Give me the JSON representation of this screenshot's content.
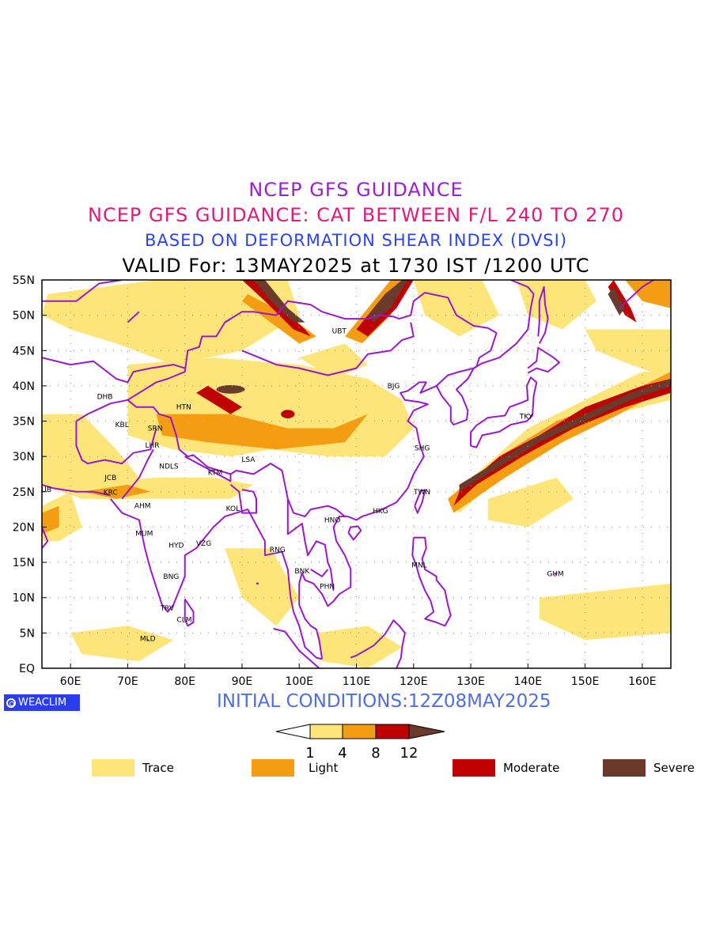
{
  "titles": {
    "line1": "NCEP GFS GUIDANCE",
    "line2": "NCEP GFS GUIDANCE: CAT BETWEEN F/L 240 TO 270",
    "line3": "BASED ON DEFORMATION SHEAR INDEX (DVSI)",
    "line4": "VALID For: 13MAY2025 at 1730 IST /1200 UTC"
  },
  "colors": {
    "line1": "#9b1fd0",
    "line2": "#e0197a",
    "line3": "#2b44e8",
    "line4": "#000000",
    "coast": "#9a18c8",
    "trace": "#fde57a",
    "light": "#f59d12",
    "moderate": "#c00000",
    "severe": "#6b3a2a",
    "init": "#4f6fe0",
    "logo_bg": "#2a3df0"
  },
  "axes": {
    "lat_labels": [
      "55N",
      "50N",
      "45N",
      "40N",
      "35N",
      "30N",
      "25N",
      "20N",
      "15N",
      "10N",
      "5N",
      "EQ"
    ],
    "lon_labels": [
      "60E",
      "70E",
      "80E",
      "90E",
      "100E",
      "110E",
      "120E",
      "130E",
      "140E",
      "150E",
      "160E"
    ]
  },
  "stations": [
    "UBT",
    "BJG",
    "DHB",
    "HTN",
    "KBL",
    "SRN",
    "LHR",
    "JCB",
    "NDLS",
    "KTM",
    "LSA",
    "SHG",
    "DUB",
    "KRC",
    "AHM",
    "TWN",
    "KOL",
    "HKG",
    "HNO",
    "MUM",
    "HYD",
    "VZG",
    "RNG",
    "BNK",
    "MNL",
    "PHN",
    "BNG",
    "GUM",
    "TRV",
    "CLM",
    "TKY",
    "MLD"
  ],
  "colorbar": {
    "ticks": [
      "1",
      "4",
      "8",
      "12"
    ]
  },
  "legend": {
    "trace": "Trace",
    "light": "Light",
    "moderate": "Moderate",
    "severe": "Severe"
  },
  "logo": {
    "text": "WEACLIM"
  },
  "initial_conditions": "INITIAL CONDITIONS:12Z08MAY2025"
}
